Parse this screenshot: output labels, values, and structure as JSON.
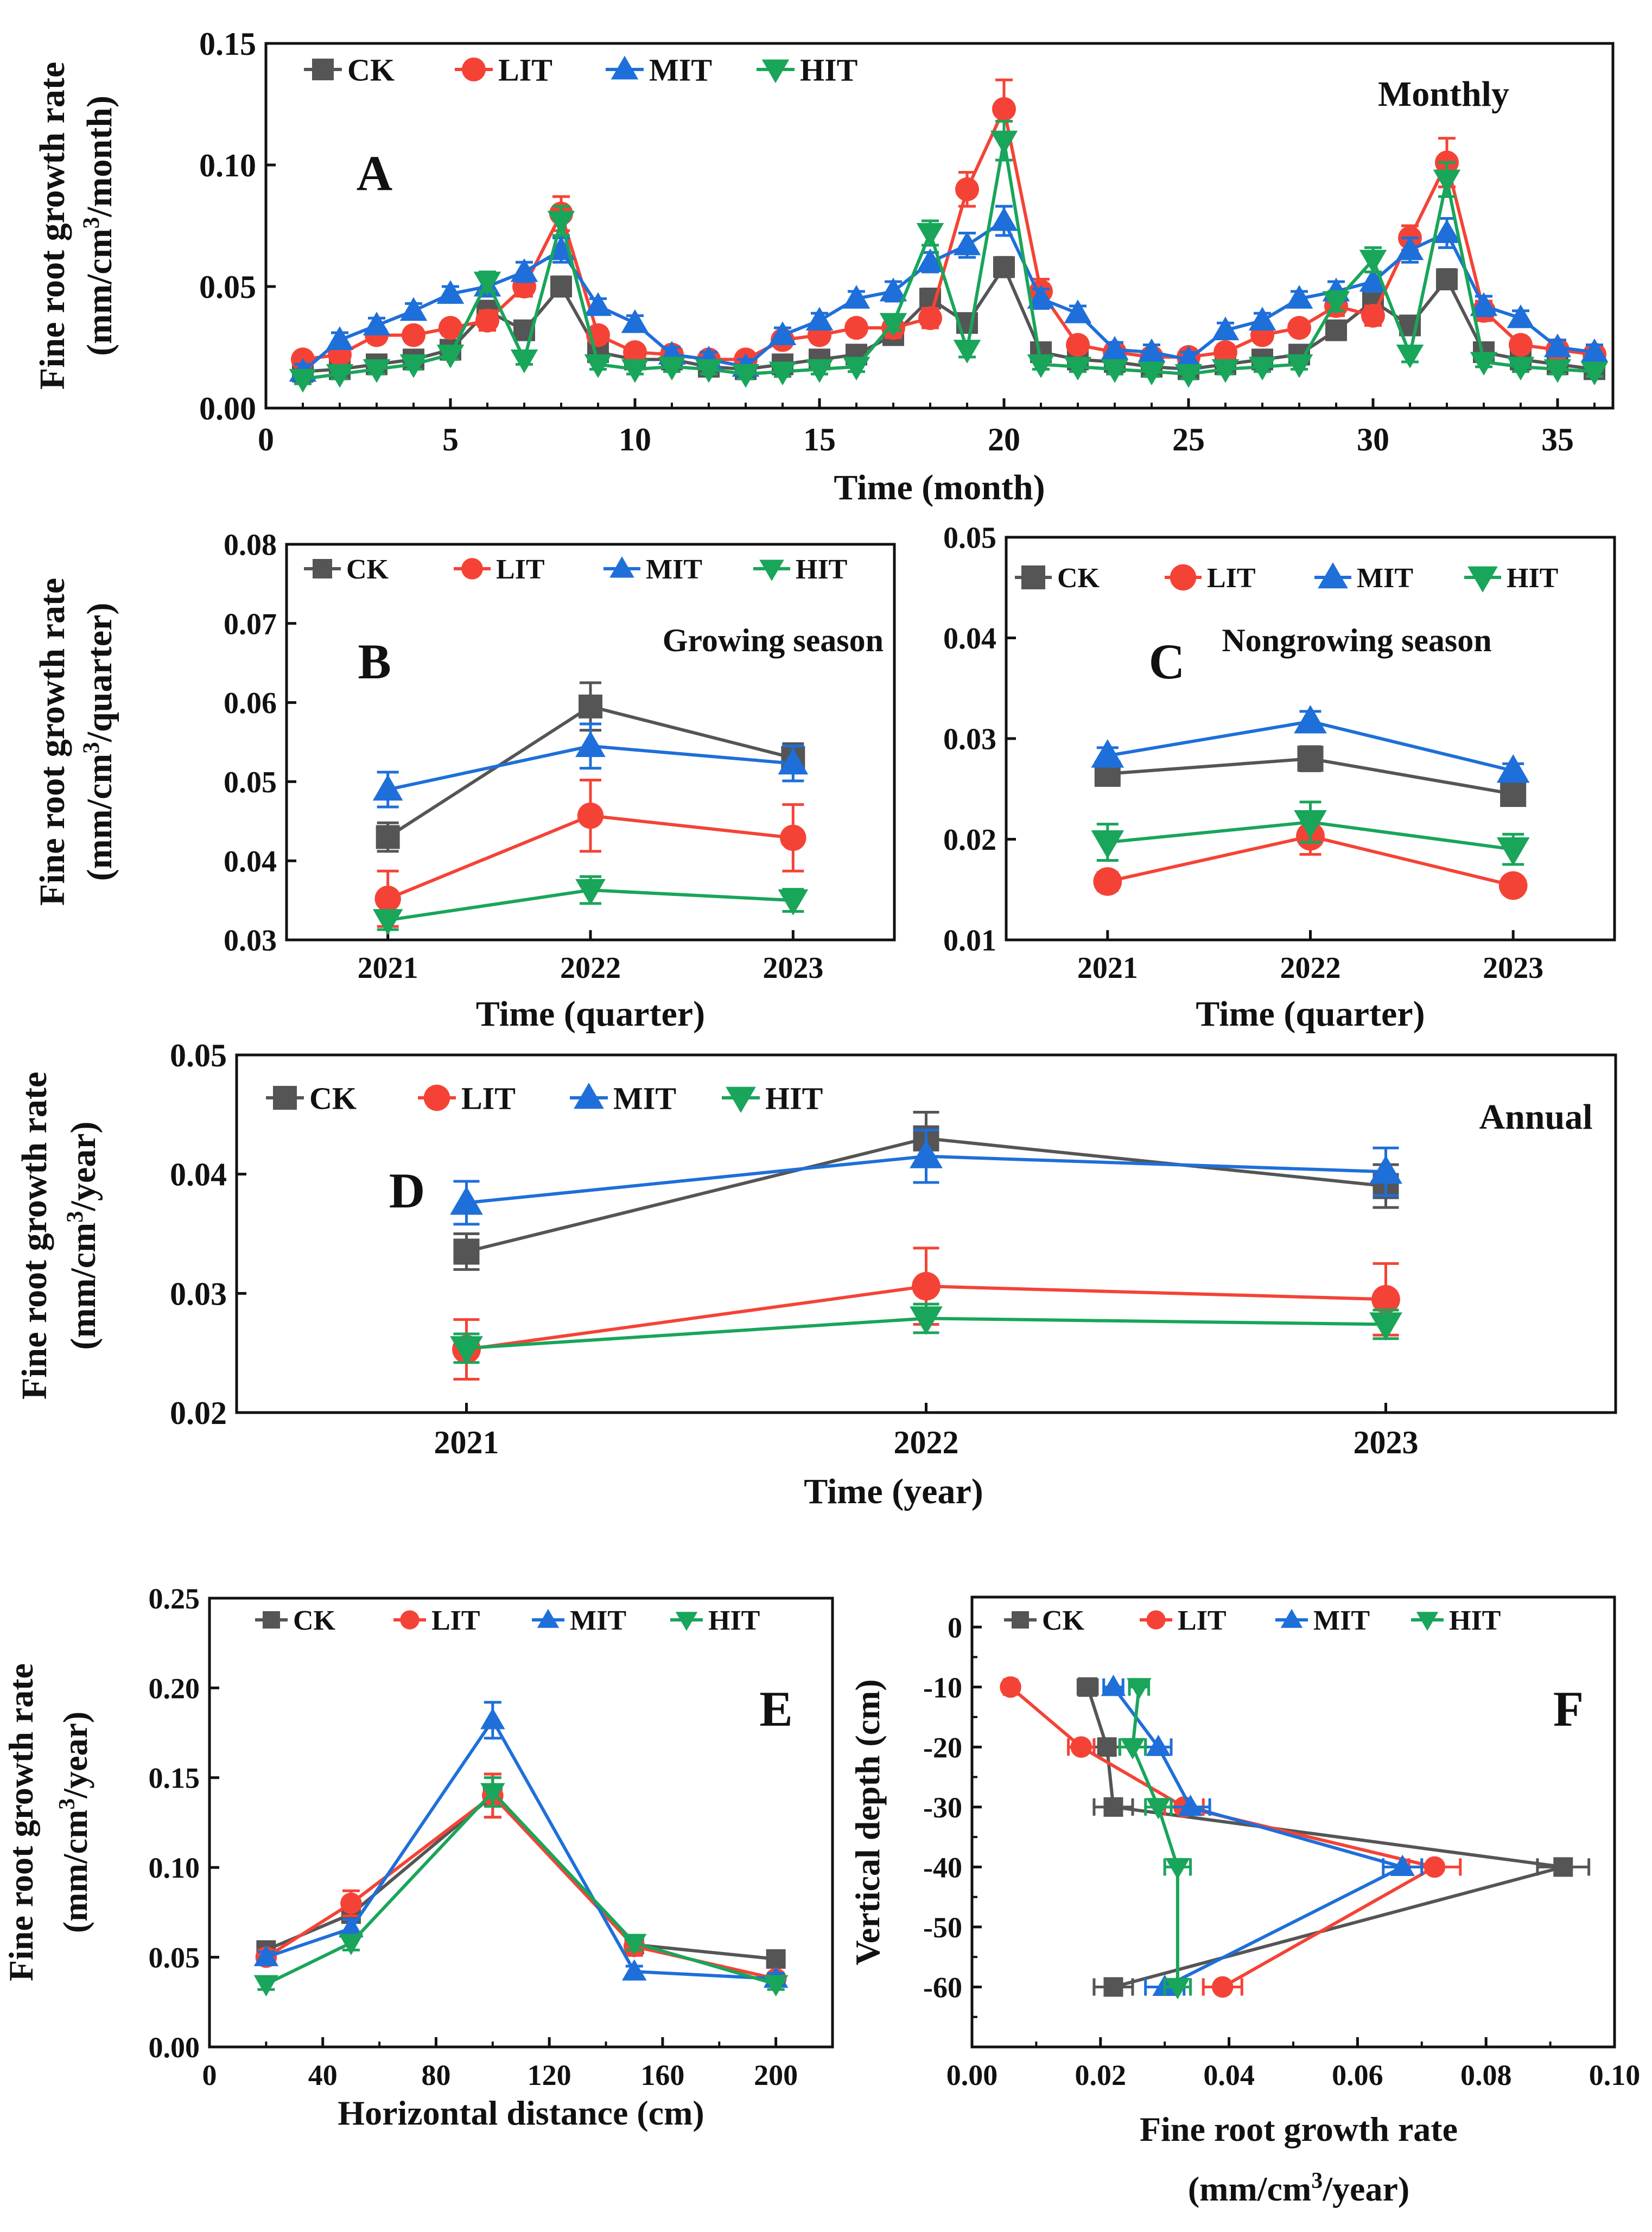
{
  "colors": {
    "CK": "#555555",
    "LIT": "#f44336",
    "MIT": "#1e6fd9",
    "HIT": "#19a55a"
  },
  "chart_data": [
    {
      "id": "A",
      "type": "line",
      "panel_label": "A",
      "title": "Monthly",
      "xlabel": "Time (month)",
      "ylabel": "Fine root growth rate",
      "ylabel2": "(mm/cm³/month)",
      "xlim": [
        0,
        36
      ],
      "ylim": [
        0,
        0.15
      ],
      "xticks": [
        0,
        5,
        10,
        15,
        20,
        25,
        30,
        35
      ],
      "yticks": [
        0.0,
        0.05,
        0.1,
        0.15
      ],
      "ytick_labels": [
        "0.00",
        "0.05",
        "0.10",
        "0.15"
      ],
      "xtick_labels": [
        "0",
        "5",
        "10",
        "15",
        "20",
        "25",
        "30",
        "35"
      ],
      "legend": [
        "CK",
        "LIT",
        "MIT",
        "HIT"
      ],
      "x": [
        1,
        2,
        3,
        4,
        5,
        6,
        7,
        8,
        9,
        10,
        11,
        12,
        13,
        14,
        15,
        16,
        17,
        18,
        19,
        20,
        21,
        22,
        23,
        24,
        25,
        26,
        27,
        28,
        29,
        30,
        31,
        32,
        33,
        34,
        35,
        36
      ],
      "series": [
        {
          "name": "CK",
          "values": [
            0.015,
            0.016,
            0.018,
            0.02,
            0.024,
            0.04,
            0.032,
            0.05,
            0.023,
            0.02,
            0.02,
            0.017,
            0.016,
            0.018,
            0.02,
            0.022,
            0.03,
            0.045,
            0.035,
            0.058,
            0.023,
            0.02,
            0.019,
            0.017,
            0.016,
            0.018,
            0.02,
            0.022,
            0.032,
            0.044,
            0.034,
            0.053,
            0.023,
            0.02,
            0.018,
            0.016
          ],
          "err": [
            0.003,
            0.003,
            0.003,
            0.003,
            0.003,
            0.004,
            0.003,
            0.004,
            0.003,
            0.003,
            0.003,
            0.003,
            0.003,
            0.003,
            0.003,
            0.003,
            0.003,
            0.004,
            0.003,
            0.004,
            0.003,
            0.003,
            0.003,
            0.003,
            0.003,
            0.003,
            0.003,
            0.003,
            0.003,
            0.004,
            0.003,
            0.004,
            0.003,
            0.003,
            0.003,
            0.003
          ]
        },
        {
          "name": "LIT",
          "values": [
            0.02,
            0.022,
            0.03,
            0.03,
            0.033,
            0.036,
            0.05,
            0.08,
            0.03,
            0.023,
            0.022,
            0.02,
            0.02,
            0.028,
            0.03,
            0.033,
            0.033,
            0.037,
            0.09,
            0.123,
            0.048,
            0.026,
            0.023,
            0.021,
            0.021,
            0.023,
            0.03,
            0.033,
            0.042,
            0.038,
            0.07,
            0.101,
            0.04,
            0.026,
            0.024,
            0.022
          ],
          "err": [
            0.003,
            0.003,
            0.003,
            0.003,
            0.003,
            0.004,
            0.004,
            0.007,
            0.003,
            0.003,
            0.003,
            0.003,
            0.003,
            0.003,
            0.003,
            0.003,
            0.004,
            0.004,
            0.007,
            0.012,
            0.005,
            0.003,
            0.003,
            0.003,
            0.003,
            0.003,
            0.003,
            0.003,
            0.004,
            0.004,
            0.005,
            0.01,
            0.004,
            0.003,
            0.003,
            0.003
          ]
        },
        {
          "name": "MIT",
          "values": [
            0.015,
            0.028,
            0.034,
            0.04,
            0.047,
            0.05,
            0.056,
            0.065,
            0.042,
            0.035,
            0.022,
            0.02,
            0.017,
            0.03,
            0.036,
            0.045,
            0.048,
            0.06,
            0.067,
            0.077,
            0.045,
            0.039,
            0.024,
            0.023,
            0.02,
            0.032,
            0.036,
            0.045,
            0.048,
            0.052,
            0.065,
            0.072,
            0.042,
            0.037,
            0.025,
            0.023
          ],
          "err": [
            0.003,
            0.003,
            0.003,
            0.003,
            0.003,
            0.004,
            0.004,
            0.005,
            0.003,
            0.003,
            0.003,
            0.003,
            0.003,
            0.003,
            0.003,
            0.003,
            0.004,
            0.004,
            0.005,
            0.006,
            0.004,
            0.003,
            0.003,
            0.003,
            0.003,
            0.003,
            0.003,
            0.003,
            0.004,
            0.004,
            0.005,
            0.006,
            0.004,
            0.003,
            0.003,
            0.003
          ]
        },
        {
          "name": "HIT",
          "values": [
            0.012,
            0.014,
            0.016,
            0.018,
            0.022,
            0.052,
            0.02,
            0.077,
            0.018,
            0.016,
            0.017,
            0.016,
            0.014,
            0.015,
            0.016,
            0.017,
            0.035,
            0.072,
            0.024,
            0.11,
            0.018,
            0.017,
            0.016,
            0.015,
            0.014,
            0.016,
            0.017,
            0.018,
            0.044,
            0.061,
            0.022,
            0.094,
            0.019,
            0.017,
            0.016,
            0.015
          ],
          "err": [
            0.002,
            0.002,
            0.002,
            0.002,
            0.002,
            0.004,
            0.002,
            0.006,
            0.002,
            0.002,
            0.002,
            0.002,
            0.002,
            0.002,
            0.002,
            0.002,
            0.003,
            0.005,
            0.003,
            0.008,
            0.002,
            0.002,
            0.002,
            0.002,
            0.002,
            0.002,
            0.002,
            0.002,
            0.004,
            0.005,
            0.003,
            0.007,
            0.002,
            0.002,
            0.002,
            0.002
          ]
        }
      ]
    },
    {
      "id": "B",
      "type": "line",
      "panel_label": "B",
      "title": "Growing season",
      "xlabel": "Time (quarter)",
      "ylabel": "Fine root growth rate",
      "ylabel2": "(mm/cm³/quarter)",
      "categories": [
        "2021",
        "2022",
        "2023"
      ],
      "ylim": [
        0.03,
        0.08
      ],
      "yticks": [
        0.03,
        0.04,
        0.05,
        0.06,
        0.07,
        0.08
      ],
      "ytick_labels": [
        "0.03",
        "0.04",
        "0.05",
        "0.06",
        "0.07",
        "0.08"
      ],
      "legend": [
        "CK",
        "LIT",
        "MIT",
        "HIT"
      ],
      "series": [
        {
          "name": "CK",
          "values": [
            0.043,
            0.0595,
            0.053
          ],
          "err": [
            0.0018,
            0.003,
            0.0018
          ]
        },
        {
          "name": "LIT",
          "values": [
            0.0352,
            0.0457,
            0.0429
          ],
          "err": [
            0.0035,
            0.0045,
            0.0042
          ]
        },
        {
          "name": "MIT",
          "values": [
            0.049,
            0.0545,
            0.0523
          ],
          "err": [
            0.0022,
            0.0028,
            0.0022
          ]
        },
        {
          "name": "HIT",
          "values": [
            0.0325,
            0.0363,
            0.035
          ],
          "err": [
            0.0012,
            0.0017,
            0.0014
          ]
        }
      ]
    },
    {
      "id": "C",
      "type": "line",
      "panel_label": "C",
      "title": "Nongrowing season",
      "xlabel": "Time (quarter)",
      "categories": [
        "2021",
        "2022",
        "2023"
      ],
      "ylim": [
        0.01,
        0.05
      ],
      "yticks": [
        0.01,
        0.02,
        0.03,
        0.04,
        0.05
      ],
      "ytick_labels": [
        "0.01",
        "0.02",
        "0.03",
        "0.04",
        "0.05"
      ],
      "legend": [
        "CK",
        "LIT",
        "MIT",
        "HIT"
      ],
      "series": [
        {
          "name": "CK",
          "values": [
            0.0265,
            0.028,
            0.0245
          ],
          "err": [
            0.0008,
            0.0012,
            0.0008
          ]
        },
        {
          "name": "LIT",
          "values": [
            0.0158,
            0.0203,
            0.0154
          ],
          "err": [
            0.0009,
            0.0018,
            0.0008
          ]
        },
        {
          "name": "MIT",
          "values": [
            0.0283,
            0.0317,
            0.0268
          ],
          "err": [
            0.0008,
            0.001,
            0.0007
          ]
        },
        {
          "name": "HIT",
          "values": [
            0.0197,
            0.0217,
            0.019
          ],
          "err": [
            0.0018,
            0.002,
            0.0015
          ]
        }
      ]
    },
    {
      "id": "D",
      "type": "line",
      "panel_label": "D",
      "title": "Annual",
      "xlabel": "Time (year)",
      "ylabel": "Fine root growth rate",
      "ylabel2": "(mm/cm³/year)",
      "categories": [
        "2021",
        "2022",
        "2023"
      ],
      "ylim": [
        0.02,
        0.05
      ],
      "yticks": [
        0.02,
        0.03,
        0.04,
        0.05
      ],
      "ytick_labels": [
        "0.02",
        "0.03",
        "0.04",
        "0.05"
      ],
      "legend": [
        "CK",
        "LIT",
        "MIT",
        "HIT"
      ],
      "series": [
        {
          "name": "CK",
          "values": [
            0.0335,
            0.043,
            0.039
          ],
          "err": [
            0.0015,
            0.0022,
            0.0018
          ]
        },
        {
          "name": "LIT",
          "values": [
            0.0253,
            0.0306,
            0.0295
          ],
          "err": [
            0.0025,
            0.0032,
            0.003
          ]
        },
        {
          "name": "MIT",
          "values": [
            0.0376,
            0.0415,
            0.0402
          ],
          "err": [
            0.0018,
            0.0022,
            0.002
          ]
        },
        {
          "name": "HIT",
          "values": [
            0.0254,
            0.0279,
            0.0274
          ],
          "err": [
            0.0012,
            0.0012,
            0.0012
          ]
        }
      ]
    },
    {
      "id": "E",
      "type": "line",
      "panel_label": "E",
      "xlabel": "Horizontal distance (cm)",
      "ylabel": "Fine root growth rate",
      "ylabel2": "(mm/cm³/year)",
      "xlim": [
        0,
        220
      ],
      "ylim": [
        0,
        0.25
      ],
      "xticks": [
        0,
        40,
        80,
        120,
        160,
        200
      ],
      "xtick_labels": [
        "0",
        "40",
        "80",
        "120",
        "160",
        "200"
      ],
      "yticks": [
        0,
        0.05,
        0.1,
        0.15,
        0.2,
        0.25
      ],
      "ytick_labels": [
        "0.00",
        "0.05",
        "0.10",
        "0.15",
        "0.20",
        "0.25"
      ],
      "legend": [
        "CK",
        "LIT",
        "MIT",
        "HIT"
      ],
      "x": [
        20,
        50,
        100,
        150,
        200
      ],
      "series": [
        {
          "name": "CK",
          "values": [
            0.054,
            0.074,
            0.14,
            0.057,
            0.049
          ],
          "err": [
            0.004,
            0.004,
            0.012,
            0.004,
            0.003
          ]
        },
        {
          "name": "LIT",
          "values": [
            0.05,
            0.08,
            0.14,
            0.056,
            0.038
          ],
          "err": [
            0.004,
            0.007,
            0.012,
            0.005,
            0.003
          ]
        },
        {
          "name": "MIT",
          "values": [
            0.05,
            0.066,
            0.182,
            0.042,
            0.038
          ],
          "err": [
            0.003,
            0.005,
            0.01,
            0.003,
            0.003
          ]
        },
        {
          "name": "HIT",
          "values": [
            0.035,
            0.058,
            0.142,
            0.058,
            0.035
          ],
          "err": [
            0.003,
            0.004,
            0.008,
            0.004,
            0.003
          ]
        }
      ]
    },
    {
      "id": "F",
      "type": "line",
      "panel_label": "F",
      "xlabel": "Fine root growth rate",
      "xlabel2": "(mm/cm³/year)",
      "ylabel": "Vertical depth (cm)",
      "xlim": [
        0,
        0.1
      ],
      "ylim": [
        -70,
        5
      ],
      "xticks": [
        0,
        0.02,
        0.04,
        0.06,
        0.08,
        0.1
      ],
      "xtick_labels": [
        "0.00",
        "0.02",
        "0.04",
        "0.06",
        "0.08",
        "0.10"
      ],
      "yticks": [
        0,
        -10,
        -20,
        -30,
        -40,
        -50,
        -60
      ],
      "ytick_labels": [
        "0",
        "-10",
        "-20",
        "-30",
        "-40",
        "-50",
        "-60"
      ],
      "legend": [
        "CK",
        "LIT",
        "MIT",
        "HIT"
      ],
      "depth": [
        -10,
        -20,
        -30,
        -40,
        -60
      ],
      "series": [
        {
          "name": "CK",
          "values": [
            0.018,
            0.021,
            0.022,
            0.092,
            0.022
          ],
          "err": [
            0.0015,
            0.002,
            0.003,
            0.004,
            0.003
          ]
        },
        {
          "name": "LIT",
          "values": [
            0.006,
            0.017,
            0.033,
            0.072,
            0.039
          ],
          "err": [
            0.001,
            0.002,
            0.003,
            0.004,
            0.003
          ]
        },
        {
          "name": "MIT",
          "values": [
            0.022,
            0.029,
            0.034,
            0.067,
            0.03
          ],
          "err": [
            0.0015,
            0.002,
            0.003,
            0.003,
            0.003
          ]
        },
        {
          "name": "HIT",
          "values": [
            0.026,
            0.025,
            0.029,
            0.032,
            0.032
          ],
          "err": [
            0.0015,
            0.002,
            0.002,
            0.002,
            0.002
          ]
        }
      ]
    }
  ]
}
